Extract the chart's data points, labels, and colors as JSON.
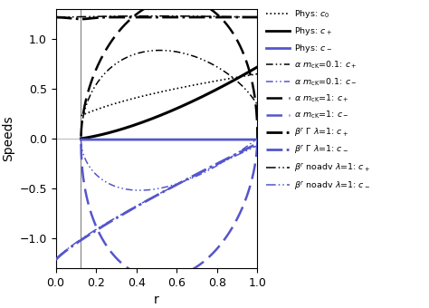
{
  "title": "",
  "xlabel": "r",
  "ylabel": "Speeds",
  "xlim": [
    0.0,
    1.0
  ],
  "ylim": [
    -1.3,
    1.3
  ],
  "xticks": [
    0.0,
    0.2,
    0.4,
    0.6,
    0.8,
    1.0
  ],
  "yticks": [
    -1.0,
    -0.5,
    0.0,
    0.5,
    1.0
  ],
  "vline_x": 0.125,
  "black": "#000000",
  "blue": "#5555cc",
  "rs": 0.125
}
